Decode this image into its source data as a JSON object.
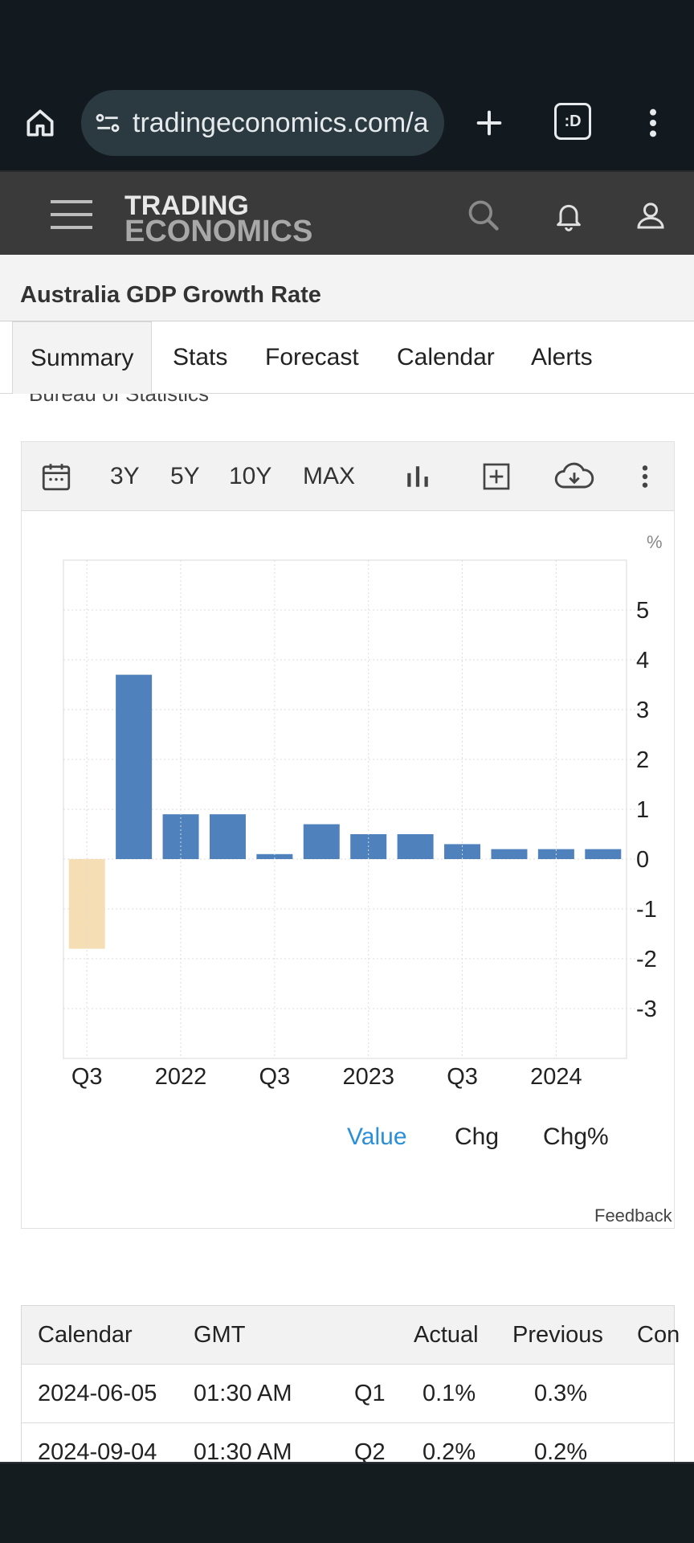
{
  "browser": {
    "url": "tradingeconomics.com/australia/gdp-growth",
    "tab_count_label": ":D"
  },
  "site": {
    "logo_line1": "TRADING",
    "logo_line2": "ECONOMICS"
  },
  "page": {
    "title": "Australia GDP Growth Rate",
    "tabs": [
      "Summary",
      "Stats",
      "Forecast",
      "Calendar",
      "Alerts"
    ],
    "active_tab": "Summary",
    "source_partial": "Bureau of Statistics"
  },
  "chart_toolbar": {
    "ranges": [
      "3Y",
      "5Y",
      "10Y",
      "MAX"
    ]
  },
  "chart_data": {
    "type": "bar",
    "unit": "%",
    "x_tick_labels": [
      "Q3",
      "2022",
      "Q3",
      "2023",
      "Q3",
      "2024"
    ],
    "categories": [
      "2021 Q3",
      "2021 Q4",
      "2022 Q1",
      "2022 Q2",
      "2022 Q3",
      "2022 Q4",
      "2023 Q1",
      "2023 Q2",
      "2023 Q3",
      "2023 Q4",
      "2024 Q1",
      "2024 Q2"
    ],
    "values": [
      -1.8,
      3.7,
      0.9,
      0.9,
      0.1,
      0.7,
      0.5,
      0.5,
      0.3,
      0.2,
      0.2,
      0.2
    ],
    "ylim": [
      -4,
      6
    ],
    "y_ticks": [
      5,
      4,
      3,
      2,
      1,
      0,
      -1,
      -2,
      -3
    ],
    "positive_color": "#4f81bd",
    "negative_color": "#f5deb3",
    "grid": true,
    "title": "",
    "xlabel": "",
    "ylabel": ""
  },
  "chart_modes": {
    "items": [
      "Value",
      "Chg",
      "Chg%"
    ],
    "active": "Value",
    "active_color": "#2a8fd8"
  },
  "feedback_label": "Feedback",
  "calendar_table": {
    "headers": [
      "Calendar",
      "GMT",
      "",
      "Actual",
      "Previous",
      "Con"
    ],
    "rows": [
      [
        "2024-06-05",
        "01:30 AM",
        "Q1",
        "0.1%",
        "0.3%"
      ],
      [
        "2024-09-04",
        "01:30 AM",
        "Q2",
        "0.2%",
        "0.2%"
      ]
    ]
  }
}
